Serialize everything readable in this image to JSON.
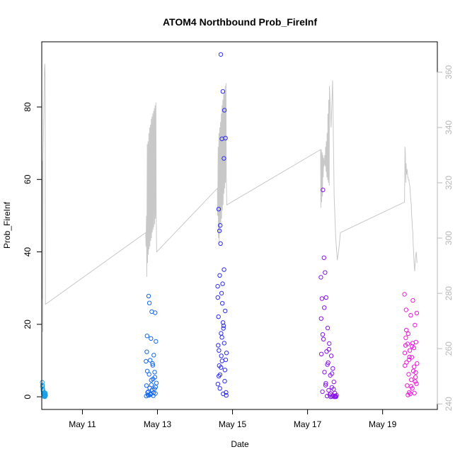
{
  "chart_data": {
    "type": "scatter",
    "title": "ATOM4 Northbound Prob_FireInf",
    "xlabel": "Date",
    "ylabel": "Prob_FireInf",
    "xlim": [
      "2024-05-09T22:00",
      "2024-05-20T11:00"
    ],
    "ylim": [
      -3.5,
      98
    ],
    "xticks": [
      {
        "value": "2024-05-11",
        "label": "May 11"
      },
      {
        "value": "2024-05-13",
        "label": "May 13"
      },
      {
        "value": "2024-05-15",
        "label": "May 15"
      },
      {
        "value": "2024-05-17",
        "label": "May 17"
      },
      {
        "value": "2024-05-19",
        "label": "May 19"
      }
    ],
    "yticks": [
      0,
      20,
      40,
      60,
      80
    ],
    "y2lim": [
      238,
      371
    ],
    "y2ticks": [
      240,
      260,
      280,
      300,
      320,
      340,
      360
    ],
    "grid": false,
    "series": [
      {
        "color": "#1a9ee6",
        "x": [
          "2024-05-09T22:20",
          "2024-05-09T22:30",
          "2024-05-09T22:40",
          "2024-05-09T22:50",
          "2024-05-09T23:00",
          "2024-05-09T23:10",
          "2024-05-09T23:20",
          "2024-05-09T23:30",
          "2024-05-09T23:40",
          "2024-05-09T23:50",
          "2024-05-10T00:00",
          "2024-05-10T00:10",
          "2024-05-10T00:20",
          "2024-05-10T00:30",
          "2024-05-09T22:25",
          "2024-05-09T22:45",
          "2024-05-09T23:05",
          "2024-05-09T23:25",
          "2024-05-09T23:45",
          "2024-05-10T00:05"
        ],
        "values": [
          4.0,
          3.2,
          2.1,
          1.5,
          0.8,
          0.3,
          0.1,
          0.5,
          1.2,
          0.2,
          0.0,
          0.6,
          1.0,
          0.4,
          2.8,
          1.9,
          0.7,
          0.2,
          0.9,
          0.1
        ]
      },
      {
        "color": "#1468f0",
        "x": [
          "2024-05-12T16:40",
          "2024-05-12T17:00",
          "2024-05-12T17:20",
          "2024-05-12T17:40",
          "2024-05-12T18:00",
          "2024-05-12T18:20",
          "2024-05-12T18:40",
          "2024-05-12T19:00",
          "2024-05-12T19:20",
          "2024-05-12T19:40",
          "2024-05-12T20:00",
          "2024-05-12T20:20",
          "2024-05-12T20:40",
          "2024-05-12T21:00",
          "2024-05-12T21:20",
          "2024-05-12T21:40",
          "2024-05-12T22:00",
          "2024-05-12T22:20",
          "2024-05-12T22:40",
          "2024-05-12T23:00",
          "2024-05-12T23:20",
          "2024-05-12T16:50",
          "2024-05-12T17:30",
          "2024-05-12T18:10",
          "2024-05-12T18:50",
          "2024-05-12T19:30",
          "2024-05-12T20:10",
          "2024-05-12T20:50",
          "2024-05-12T21:30",
          "2024-05-12T22:10",
          "2024-05-12T22:50",
          "2024-05-12T17:10",
          "2024-05-12T18:30",
          "2024-05-12T19:50",
          "2024-05-12T21:10",
          "2024-05-12T22:30"
        ],
        "values": [
          9.8,
          3.1,
          16.8,
          1.2,
          0.5,
          27.8,
          6.2,
          2.4,
          10.1,
          0.8,
          4.6,
          23.5,
          1.9,
          8.7,
          0.3,
          11.5,
          2.2,
          5.4,
          0.9,
          15.3,
          3.8,
          0.2,
          7.1,
          1.4,
          25.9,
          0.6,
          3.3,
          9.2,
          1.1,
          6.8,
          2.7,
          12.4,
          0.4,
          16.1,
          4.9,
          23.2
        ]
      },
      {
        "color": "#2d2cf0",
        "x": [
          "2024-05-14T14:30",
          "2024-05-14T14:50",
          "2024-05-14T15:10",
          "2024-05-14T15:30",
          "2024-05-14T15:50",
          "2024-05-14T16:10",
          "2024-05-14T16:30",
          "2024-05-14T16:50",
          "2024-05-14T17:10",
          "2024-05-14T17:30",
          "2024-05-14T17:50",
          "2024-05-14T18:10",
          "2024-05-14T18:30",
          "2024-05-14T18:50",
          "2024-05-14T19:10",
          "2024-05-14T19:30",
          "2024-05-14T19:50",
          "2024-05-14T14:40",
          "2024-05-14T15:00",
          "2024-05-14T15:20",
          "2024-05-14T15:40",
          "2024-05-14T16:00",
          "2024-05-14T16:20",
          "2024-05-14T16:40",
          "2024-05-14T17:00",
          "2024-05-14T17:20",
          "2024-05-14T17:40",
          "2024-05-14T18:00",
          "2024-05-14T18:20",
          "2024-05-14T18:40",
          "2024-05-14T19:00",
          "2024-05-14T19:20",
          "2024-05-14T19:40",
          "2024-05-14T20:00",
          "2024-05-14T20:10",
          "2024-05-14T14:35",
          "2024-05-14T15:15",
          "2024-05-14T15:55",
          "2024-05-14T16:35",
          "2024-05-14T17:15",
          "2024-05-14T17:55",
          "2024-05-14T18:35"
        ],
        "values": [
          30.5,
          14.2,
          51.8,
          8.6,
          33.5,
          47.3,
          94.5,
          11.3,
          71.2,
          25.8,
          84.3,
          18.9,
          65.8,
          79.1,
          7.4,
          71.4,
          1.2,
          3.5,
          22.1,
          12.8,
          45.8,
          6.1,
          42.3,
          17.5,
          28.6,
          9.9,
          31.2,
          0.8,
          19.6,
          14.8,
          4.3,
          23.7,
          10.2,
          0.4,
          12.1,
          27.4,
          5.7,
          2.3,
          8.1,
          16.4,
          20.5,
          35.1
        ]
      },
      {
        "color": "#8a16e8",
        "x": [
          "2024-05-17T08:30",
          "2024-05-17T08:50",
          "2024-05-17T09:10",
          "2024-05-17T09:30",
          "2024-05-17T09:50",
          "2024-05-17T10:10",
          "2024-05-17T10:30",
          "2024-05-17T10:50",
          "2024-05-17T11:10",
          "2024-05-17T11:30",
          "2024-05-17T11:50",
          "2024-05-17T12:10",
          "2024-05-17T12:30",
          "2024-05-17T12:50",
          "2024-05-17T13:10",
          "2024-05-17T13:30",
          "2024-05-17T13:50",
          "2024-05-17T14:10",
          "2024-05-17T14:30",
          "2024-05-17T14:50",
          "2024-05-17T15:10",
          "2024-05-17T15:30",
          "2024-05-17T15:50",
          "2024-05-17T16:10",
          "2024-05-17T16:30",
          "2024-05-17T16:50",
          "2024-05-17T17:10",
          "2024-05-17T17:30",
          "2024-05-17T17:50",
          "2024-05-17T18:10",
          "2024-05-17T18:30",
          "2024-05-17T08:40",
          "2024-05-17T09:40",
          "2024-05-17T10:40",
          "2024-05-17T11:40",
          "2024-05-17T12:40",
          "2024-05-17T13:40",
          "2024-05-17T14:40",
          "2024-05-17T15:40",
          "2024-05-17T16:40",
          "2024-05-17T17:40"
        ],
        "values": [
          33.0,
          11.8,
          27.1,
          1.4,
          57.1,
          15.9,
          38.4,
          6.8,
          34.3,
          3.2,
          27.4,
          12.5,
          0.2,
          19.0,
          9.4,
          1.8,
          14.7,
          0.5,
          5.9,
          0.0,
          11.3,
          2.6,
          0.1,
          7.8,
          0.3,
          4.1,
          0.0,
          1.0,
          0.2,
          0.0,
          0.4,
          21.6,
          17.2,
          24.6,
          3.7,
          8.9,
          13.1,
          0.9,
          6.4,
          2.1,
          0.0
        ]
      },
      {
        "color": "#e81ad8",
        "x": [
          "2024-05-19T14:00",
          "2024-05-19T14:20",
          "2024-05-19T14:40",
          "2024-05-19T15:00",
          "2024-05-19T15:20",
          "2024-05-19T15:40",
          "2024-05-19T16:00",
          "2024-05-19T16:20",
          "2024-05-19T16:40",
          "2024-05-19T17:00",
          "2024-05-19T17:20",
          "2024-05-19T17:40",
          "2024-05-19T18:00",
          "2024-05-19T18:20",
          "2024-05-19T18:40",
          "2024-05-19T19:00",
          "2024-05-19T19:20",
          "2024-05-19T19:40",
          "2024-05-19T20:00",
          "2024-05-19T20:20",
          "2024-05-19T20:40",
          "2024-05-19T21:00",
          "2024-05-19T21:20",
          "2024-05-19T21:40",
          "2024-05-19T22:00",
          "2024-05-19T14:10",
          "2024-05-19T15:10",
          "2024-05-19T16:10",
          "2024-05-19T17:10",
          "2024-05-19T18:10",
          "2024-05-19T19:10",
          "2024-05-19T20:10",
          "2024-05-19T21:10",
          "2024-05-19T21:50",
          "2024-05-19T14:50",
          "2024-05-19T16:50",
          "2024-05-19T18:50",
          "2024-05-19T20:50"
        ],
        "values": [
          28.3,
          8.6,
          14.2,
          24.0,
          9.5,
          3.1,
          14.6,
          17.4,
          6.2,
          1.2,
          12.8,
          0.8,
          22.5,
          4.7,
          10.9,
          2.3,
          26.6,
          7.1,
          13.5,
          1.0,
          19.8,
          5.4,
          15.1,
          3.6,
          9.2,
          12.1,
          18.4,
          0.5,
          11.0,
          2.9,
          14.8,
          8.3,
          6.7,
          23.1,
          16.3,
          10.2,
          13.9,
          4.2
        ]
      }
    ],
    "secondary_series": {
      "color": "#c8c8c8",
      "axis": "right",
      "x": [
        "2024-05-09T22:10",
        "2024-05-09T22:20",
        "2024-05-09T22:30",
        "2024-05-09T22:40",
        "2024-05-09T22:50",
        "2024-05-09T23:00",
        "2024-05-09T23:10",
        "2024-05-09T23:20",
        "2024-05-09T23:30",
        "2024-05-09T23:40",
        "2024-05-09T23:50",
        "2024-05-10T00:00",
        "2024-05-10T00:10",
        "2024-05-10T00:20",
        "2024-05-12T16:30",
        "2024-05-12T16:40",
        "2024-05-12T17:00",
        "2024-05-12T17:10",
        "2024-05-12T17:30",
        "2024-05-12T17:40",
        "2024-05-12T18:00",
        "2024-05-12T18:10",
        "2024-05-12T18:30",
        "2024-05-12T18:40",
        "2024-05-12T19:00",
        "2024-05-12T19:10",
        "2024-05-12T19:30",
        "2024-05-12T19:40",
        "2024-05-12T20:00",
        "2024-05-12T20:10",
        "2024-05-12T20:30",
        "2024-05-12T20:40",
        "2024-05-12T21:00",
        "2024-05-12T21:10",
        "2024-05-12T21:30",
        "2024-05-12T21:40",
        "2024-05-12T22:00",
        "2024-05-12T22:10",
        "2024-05-12T22:30",
        "2024-05-12T22:40",
        "2024-05-12T23:00",
        "2024-05-12T23:10",
        "2024-05-12T23:30",
        "2024-05-14T14:20",
        "2024-05-14T14:30",
        "2024-05-14T14:50",
        "2024-05-14T15:00",
        "2024-05-14T15:20",
        "2024-05-14T15:30",
        "2024-05-14T15:50",
        "2024-05-14T16:00",
        "2024-05-14T16:20",
        "2024-05-14T16:30",
        "2024-05-14T16:50",
        "2024-05-14T17:00",
        "2024-05-14T17:20",
        "2024-05-14T17:30",
        "2024-05-14T17:50",
        "2024-05-14T18:00",
        "2024-05-14T18:20",
        "2024-05-14T18:30",
        "2024-05-14T18:50",
        "2024-05-14T19:00",
        "2024-05-14T19:20",
        "2024-05-14T19:30",
        "2024-05-14T19:50",
        "2024-05-14T20:00",
        "2024-05-14T20:20",
        "2024-05-17T08:20",
        "2024-05-17T08:30",
        "2024-05-17T08:50",
        "2024-05-17T09:00",
        "2024-05-17T09:20",
        "2024-05-17T09:30",
        "2024-05-17T09:50",
        "2024-05-17T10:00",
        "2024-05-17T10:20",
        "2024-05-17T10:30",
        "2024-05-17T10:50",
        "2024-05-17T11:00",
        "2024-05-17T11:20",
        "2024-05-17T11:30",
        "2024-05-17T11:50",
        "2024-05-17T12:00",
        "2024-05-17T12:20",
        "2024-05-17T12:30",
        "2024-05-17T12:50",
        "2024-05-17T13:00",
        "2024-05-17T13:20",
        "2024-05-17T13:30",
        "2024-05-17T13:50",
        "2024-05-17T14:00",
        "2024-05-17T15:00",
        "2024-05-17T16:00",
        "2024-05-17T17:00",
        "2024-05-17T18:00",
        "2024-05-17T19:00",
        "2024-05-17T20:00",
        "2024-05-17T21:00",
        "2024-05-19T14:00",
        "2024-05-19T14:20",
        "2024-05-19T14:30",
        "2024-05-19T14:50",
        "2024-05-19T15:00",
        "2024-05-19T15:20",
        "2024-05-19T15:30",
        "2024-05-19T15:50",
        "2024-05-19T16:00",
        "2024-05-19T16:20",
        "2024-05-19T16:30",
        "2024-05-19T16:50",
        "2024-05-19T17:00",
        "2024-05-19T17:20",
        "2024-05-19T17:30",
        "2024-05-19T17:50",
        "2024-05-19T18:00",
        "2024-05-19T18:20",
        "2024-05-19T18:30",
        "2024-05-19T18:50",
        "2024-05-19T19:00",
        "2024-05-19T19:20",
        "2024-05-19T19:30",
        "2024-05-19T19:50",
        "2024-05-19T20:00",
        "2024-05-19T20:20",
        "2024-05-19T20:30",
        "2024-05-19T21:00",
        "2024-05-19T21:30",
        "2024-05-19T22:00"
      ],
      "values": [
        278,
        325,
        328,
        266,
        330,
        335,
        340,
        345,
        352,
        360,
        362,
        363,
        358,
        276,
        302,
        297,
        308,
        286,
        334,
        291,
        335,
        294,
        338,
        296,
        340,
        297,
        341,
        299,
        343,
        300,
        344,
        302,
        345,
        303,
        346,
        304,
        347,
        305,
        348,
        307,
        349,
        309,
        295,
        318,
        308,
        333,
        300,
        338,
        298,
        340,
        302,
        342,
        305,
        345,
        307,
        348,
        310,
        350,
        312,
        352,
        316,
        353,
        318,
        355,
        320,
        356,
        322,
        312,
        332,
        311,
        332,
        313,
        331,
        315,
        330,
        322,
        329,
        326,
        327,
        330,
        326,
        333,
        324,
        335,
        322,
        338,
        321,
        345,
        320,
        350,
        319,
        355,
        340,
        357,
        315,
        300,
        292,
        296,
        302,
        313,
        333,
        331,
        320,
        327,
        323,
        325,
        324,
        322,
        322,
        321,
        321,
        320,
        319,
        318,
        315,
        314,
        312,
        309,
        306,
        304,
        302,
        298,
        295,
        292,
        289,
        288,
        293,
        295,
        291
      ]
    }
  }
}
